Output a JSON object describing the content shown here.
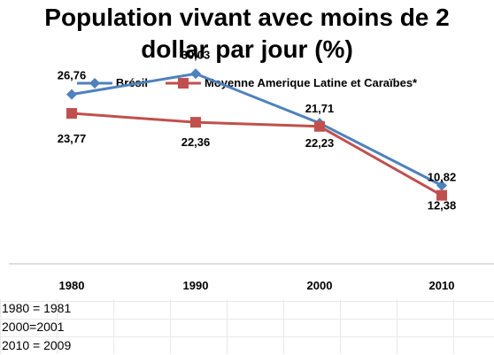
{
  "chart_data": {
    "type": "line",
    "title_line1": "Population vivant avec moins de 2",
    "title_line2": "dollar par jour (%)",
    "categories": [
      "1980",
      "1990",
      "2000",
      "2010"
    ],
    "series": [
      {
        "name": "Brésil",
        "color": "#4f81bd",
        "marker": "diamond",
        "values": [
          26.76,
          30.03,
          22.23,
          12.38
        ],
        "labels": [
          "26,76",
          "30,03",
          "22,23",
          "12,38"
        ]
      },
      {
        "name": "Moyenne Amerique Latine et Caraïbes*",
        "color": "#c0504d",
        "marker": "square",
        "values": [
          23.77,
          22.36,
          21.71,
          10.82
        ],
        "labels": [
          "23,77",
          "22,36",
          "21,71",
          "10,82"
        ]
      }
    ],
    "ylim": [
      0,
      40
    ],
    "legend_position": "top"
  },
  "notes": [
    "1980 = 1981",
    "2000=2001",
    "2010 = 2009"
  ]
}
